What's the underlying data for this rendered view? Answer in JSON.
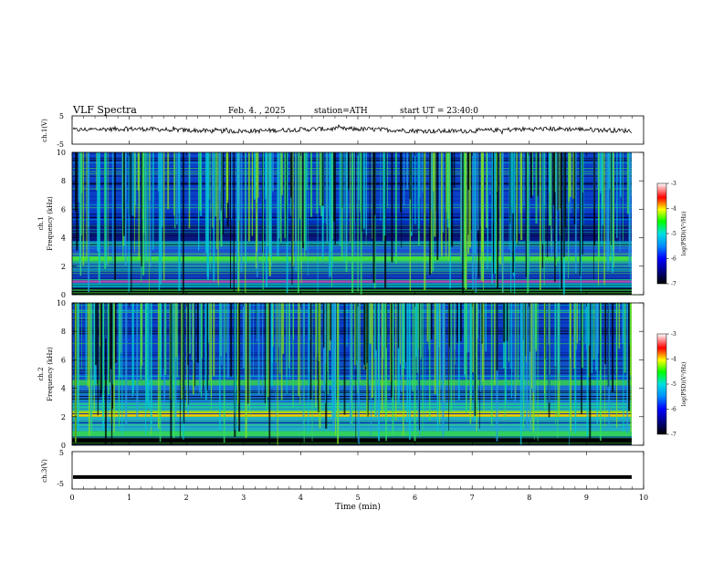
{
  "header": {
    "title": "VLF Spectra",
    "date": "Feb. 4. , 2025",
    "station": "station=ATH",
    "start": "start UT =  23:40:0"
  },
  "chart_data": [
    {
      "type": "line",
      "title": "",
      "ylabel": "ch.1(V)",
      "ylim": [
        -5,
        5
      ],
      "yticks": [
        "5",
        "-5"
      ],
      "xlim": [
        0,
        10
      ],
      "series": [
        {
          "values_note": "",
          "mean": 0.0
        }
      ]
    },
    {
      "type": "heatmap",
      "ylabel_channel": "ch.1",
      "ylabel": "Frequency (kHz)",
      "ylim": [
        0,
        10
      ],
      "yticks": [
        "10",
        "8",
        "6",
        "4",
        "2",
        "0"
      ],
      "xlim": [
        0,
        10
      ],
      "colorbar": {
        "label": "log(PSD)(V²/Hz)",
        "range": [
          -7,
          -3
        ],
        "ticks": [
          "-3",
          "-4",
          "-5",
          "-6",
          "-7"
        ]
      }
    },
    {
      "type": "heatmap",
      "ylabel_channel": "ch.2",
      "ylabel": "Frequency (kHz)",
      "ylim": [
        0,
        10
      ],
      "yticks": [
        "10",
        "8",
        "6",
        "4",
        "2",
        "0"
      ],
      "xlim": [
        0,
        10
      ],
      "colorbar": {
        "label": "log(PSD)(V²/Hz)",
        "range": [
          -7,
          -3
        ],
        "ticks": [
          "-3",
          "-4",
          "-5",
          "-6",
          "-7"
        ]
      }
    },
    {
      "type": "line",
      "ylabel": "ch.3(V)",
      "ylim": [
        -5,
        5
      ],
      "yticks": [
        "5",
        "-5"
      ],
      "xlim": [
        0,
        10
      ],
      "series": [
        {
          "mean": -1.8
        }
      ]
    }
  ],
  "xaxis": {
    "label": "Time (min)",
    "ticks": [
      "0",
      "1",
      "2",
      "3",
      "4",
      "5",
      "6",
      "7",
      "8",
      "9",
      "10"
    ]
  }
}
